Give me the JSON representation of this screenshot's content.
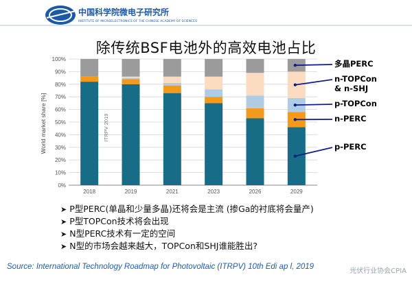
{
  "header": {
    "org_name": "中国科学院微电子研究所",
    "org_sub": "INSTITUTE OF MICROELECTRONICS OF THE CHINESE ACADEMY OF SCIENCES"
  },
  "chart_data": {
    "type": "bar",
    "stacked": true,
    "title": "除传统BSF电池外的高效电池占比",
    "ylabel": "World market share [%]",
    "ylim": [
      0,
      100
    ],
    "yticks": [
      "0%",
      "10%",
      "20%",
      "30%",
      "40%",
      "50%",
      "60%",
      "70%",
      "80%",
      "90%",
      "100%"
    ],
    "categories": [
      "2018",
      "2019",
      "2021",
      "2023",
      "2026",
      "2029"
    ],
    "watermark": "ITRPV 2019",
    "grid": true,
    "series": [
      {
        "name": "p-PERC",
        "color": "#166d85",
        "values": [
          82,
          80,
          73,
          65,
          53,
          46
        ]
      },
      {
        "name": "n-PERC",
        "color": "#f39a1d",
        "values": [
          4,
          4,
          6,
          5,
          8,
          12
        ]
      },
      {
        "name": "p-TOPCon",
        "color": "#aecde5",
        "values": [
          0,
          1,
          2,
          6,
          10,
          11
        ]
      },
      {
        "name": "n-TOPCon & n-SHJ",
        "color": "#fbdcc0",
        "values": [
          0,
          1,
          5,
          10,
          18,
          21
        ]
      },
      {
        "name": "多晶PERC",
        "color": "#9b9b9b",
        "values": [
          14,
          14,
          14,
          14,
          11,
          10
        ]
      }
    ],
    "legend_labels": [
      "多晶PERC",
      "n-TOPCon",
      "& n-SHJ",
      "p-TOPCon",
      "n-PERC",
      "p-PERC"
    ]
  },
  "bullets": [
    "P型PERC(单晶和少量多晶)还将会是主流 (掺Ga的衬底将会量产)",
    "P型TOPCon技术将会出现",
    "N型PERC技术有一定的空间",
    "N型的市场会越来越大，TOPCon和SHJ谁能胜出?"
  ],
  "bullet_marker": "➤",
  "source": "Source: International Technology Roadmap for Photovoltaic (ITRPV) 10th Edi  ap  l, 2019",
  "watermark_text": "光伏行业协会CPIA"
}
